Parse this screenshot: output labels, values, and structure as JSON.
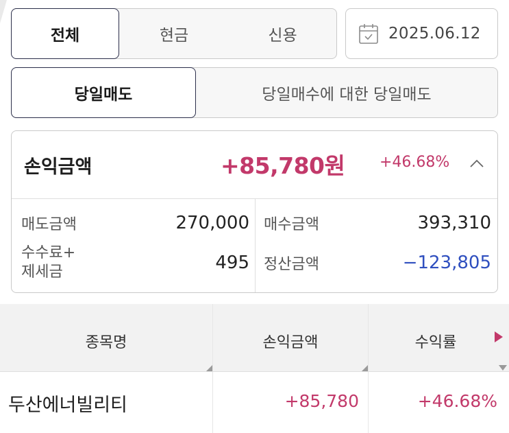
{
  "filter_tabs": [
    {
      "label": "전체",
      "active": true
    },
    {
      "label": "현금",
      "active": false
    },
    {
      "label": "신용",
      "active": false
    }
  ],
  "date": {
    "icon": "calendar-icon",
    "value": "2025.06.12"
  },
  "mode_tabs": [
    {
      "label": "당일매도",
      "active": true
    },
    {
      "label": "당일매수에 대한 당일매도",
      "active": false
    }
  ],
  "summary": {
    "profit_label": "손익금액",
    "profit_amount": "+85,780원",
    "profit_rate": "+46.68%",
    "collapse_icon": "chevron-up-icon",
    "sell_label": "매도금액",
    "sell_value": "270,000",
    "buy_label": "매수금액",
    "buy_value": "393,310",
    "fee_label_line1": "수수료+",
    "fee_label_line2": "제세금",
    "fee_value": "495",
    "settle_label": "정산금액",
    "settle_value": "−123,805"
  },
  "table": {
    "headers": [
      "종목명",
      "손익금액",
      "수익률"
    ],
    "rows": [
      {
        "name": "두산에너빌리티",
        "profit": "+85,780",
        "rate": "+46.68%"
      }
    ]
  },
  "colors": {
    "positive": "#c2396a",
    "negative": "#2f4fbf",
    "active_border": "#2b2e4a"
  }
}
